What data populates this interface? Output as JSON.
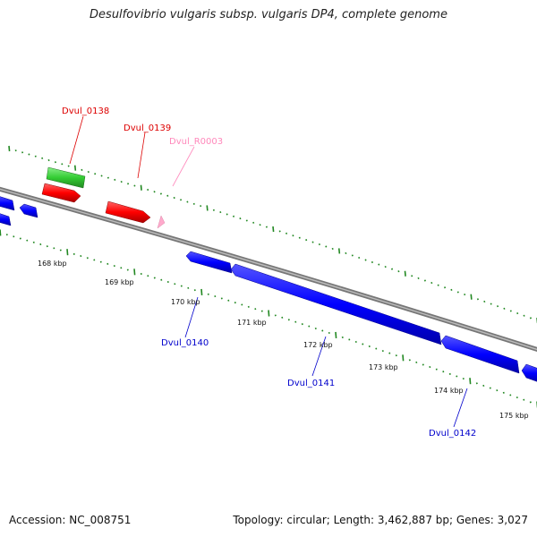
{
  "title": "Desulfovibrio vulgaris subsp. vulgaris DP4, complete genome",
  "footer": {
    "accession": "Accession: NC_008751",
    "summary": "Topology: circular; Length: 3,462,887 bp; Genes: 3,027"
  },
  "colors": {
    "backbone": "#888888",
    "forward_cds": "#ff0000",
    "reverse_cds": "#0000ff",
    "rna": "#33cc33",
    "rrna": "#ffaacc",
    "ticks": "#228822"
  },
  "ticks": [
    {
      "label": "168 kbp"
    },
    {
      "label": "169 kbp"
    },
    {
      "label": "170 kbp"
    },
    {
      "label": "171 kbp"
    },
    {
      "label": "172 kbp"
    },
    {
      "label": "173 kbp"
    },
    {
      "label": "174 kbp"
    },
    {
      "label": "175 kbp"
    }
  ],
  "gene_labels": [
    {
      "text": "Dvul_0138",
      "color": "#dd0000"
    },
    {
      "text": "Dvul_0139",
      "color": "#dd0000"
    },
    {
      "text": "Dvul_R0003",
      "color": "#ff88bb"
    },
    {
      "text": "Dvul_0140",
      "color": "#0000cc"
    },
    {
      "text": "Dvul_0141",
      "color": "#0000cc"
    },
    {
      "text": "Dvul_0142",
      "color": "#0000cc"
    }
  ]
}
